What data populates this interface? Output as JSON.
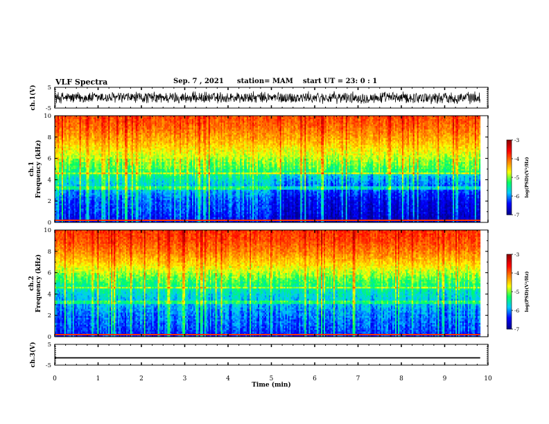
{
  "header": {
    "title": "VLF Spectra",
    "date": "Sep. 7 , 2021",
    "station": "station= MAM",
    "start_ut": "start  UT =   23: 0  : 1"
  },
  "chart_data": [
    {
      "type": "line",
      "panel": "ch1-waveform",
      "ylabel": "ch.1(V)",
      "ylim": [
        -5,
        5
      ],
      "yticks": [
        5,
        -5
      ],
      "x_range_min": [
        0,
        9.82
      ],
      "trace": "dense noisy waveform, roughly -3 to +3 V"
    },
    {
      "type": "heatmap",
      "panel": "ch1-spectrogram",
      "ylabel": "ch.1\nFrequency  (kHz)",
      "ylim": [
        0,
        10
      ],
      "yticks": [
        0,
        2,
        4,
        6,
        8,
        10
      ],
      "x_range_min": [
        0,
        9.82
      ],
      "color_scale": {
        "label": "log(PSD)(V²/Hz)",
        "range": [
          -7,
          -3
        ],
        "ticks": [
          -3,
          -4,
          -5,
          -6,
          -7
        ],
        "colormap": [
          "#000090",
          "#0000ff",
          "#00c8ff",
          "#00ff64",
          "#ffff00",
          "#ff8000",
          "#ff0000",
          "#900000"
        ]
      },
      "approx_level_by_freq": [
        [
          0,
          -6.5
        ],
        [
          1,
          -6.3
        ],
        [
          2,
          -6.2
        ],
        [
          3,
          -5.9
        ],
        [
          4,
          -5.6
        ],
        [
          5,
          -5.2
        ],
        [
          6,
          -4.9
        ],
        [
          7,
          -4.6
        ],
        [
          8,
          -4.3
        ],
        [
          9,
          -4.05
        ],
        [
          10,
          -3.9
        ]
      ]
    },
    {
      "type": "heatmap",
      "panel": "ch2-spectrogram",
      "ylabel": "ch.2\nFrequency  (kHz)",
      "ylim": [
        0,
        10
      ],
      "yticks": [
        0,
        2,
        4,
        6,
        8,
        10
      ],
      "x_range_min": [
        0,
        9.82
      ],
      "color_scale": {
        "label": "log(PSD)(V²/Hz)",
        "range": [
          -7,
          -3
        ],
        "ticks": [
          -3,
          -4,
          -5,
          -6,
          -7
        ],
        "colormap": [
          "#000090",
          "#0000ff",
          "#00c8ff",
          "#00ff64",
          "#ffff00",
          "#ff8000",
          "#ff0000",
          "#900000"
        ]
      },
      "approx_level_by_freq": [
        [
          0,
          -6.4
        ],
        [
          1,
          -6.2
        ],
        [
          2,
          -6.1
        ],
        [
          3,
          -5.9
        ],
        [
          4,
          -5.7
        ],
        [
          5,
          -5.3
        ],
        [
          6,
          -4.9
        ],
        [
          7,
          -4.5
        ],
        [
          8,
          -4.15
        ],
        [
          9,
          -3.9
        ],
        [
          10,
          -3.8
        ]
      ]
    },
    {
      "type": "line",
      "panel": "ch3-waveform",
      "ylabel": "ch.3(V)",
      "ylim": [
        -5,
        5
      ],
      "yticks": [
        5,
        -5
      ],
      "x_range_min": [
        0,
        9.82
      ],
      "trace": "flat line at about -1.5 V"
    }
  ],
  "x_axis": {
    "label": "Time  (min)",
    "range": [
      0,
      10
    ],
    "ticks": [
      "0",
      "1",
      "2",
      "3",
      "4",
      "5",
      "6",
      "7",
      "8",
      "9",
      "10"
    ]
  }
}
